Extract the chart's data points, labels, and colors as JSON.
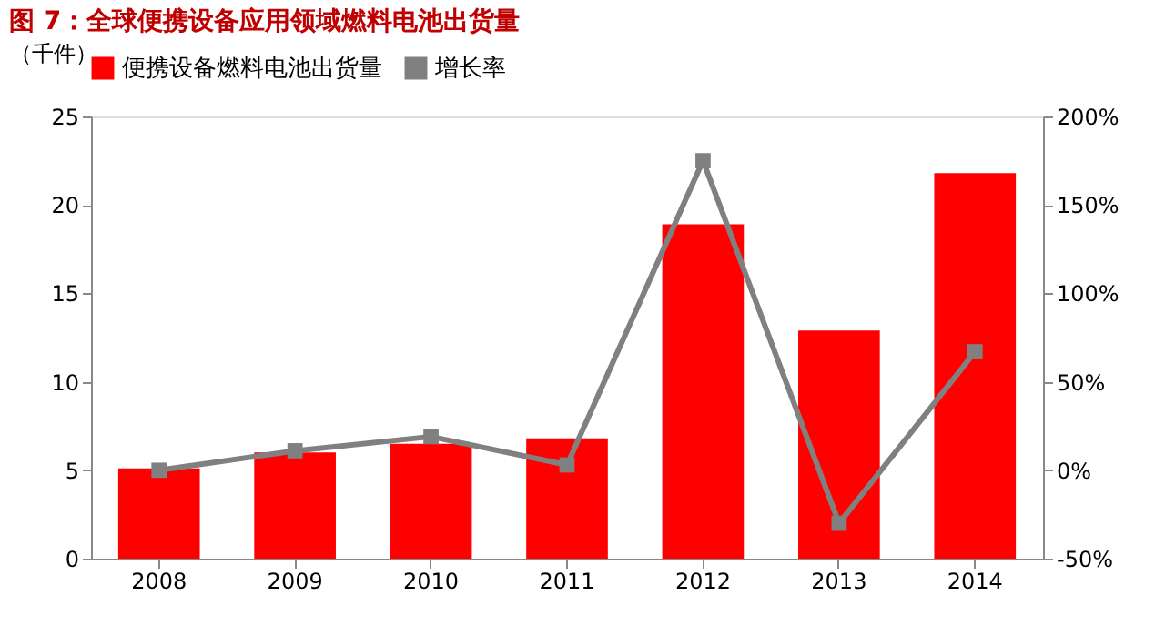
{
  "chart_data": {
    "type": "bar",
    "title": "图 7：全球便携设备应用领域燃料电池出货量",
    "ylabel": "（千件）",
    "categories": [
      "2008",
      "2009",
      "2010",
      "2011",
      "2012",
      "2013",
      "2014"
    ],
    "series": [
      {
        "name": "便携设备燃料电池出货量",
        "color": "#ff0000",
        "values": [
          5.1,
          6.0,
          6.5,
          6.8,
          18.9,
          12.9,
          21.8
        ]
      },
      {
        "name": "增长率",
        "type": "line",
        "axis": "y2",
        "color": "#808080",
        "values": [
          0,
          11,
          19,
          3,
          175,
          -30,
          67
        ]
      }
    ],
    "ylim": [
      0,
      25
    ],
    "yticks": [
      0,
      5,
      10,
      15,
      20,
      25
    ],
    "y2lim": [
      -50,
      200
    ],
    "y2ticks": [
      {
        "value": -50,
        "label": "-50%"
      },
      {
        "value": 0,
        "label": "0%"
      },
      {
        "value": 50,
        "label": "50%"
      },
      {
        "value": 100,
        "label": "100%"
      },
      {
        "value": 150,
        "label": "150%"
      },
      {
        "value": 200,
        "label": "200%"
      }
    ],
    "marker": "square",
    "legend": "top",
    "grid": false
  }
}
